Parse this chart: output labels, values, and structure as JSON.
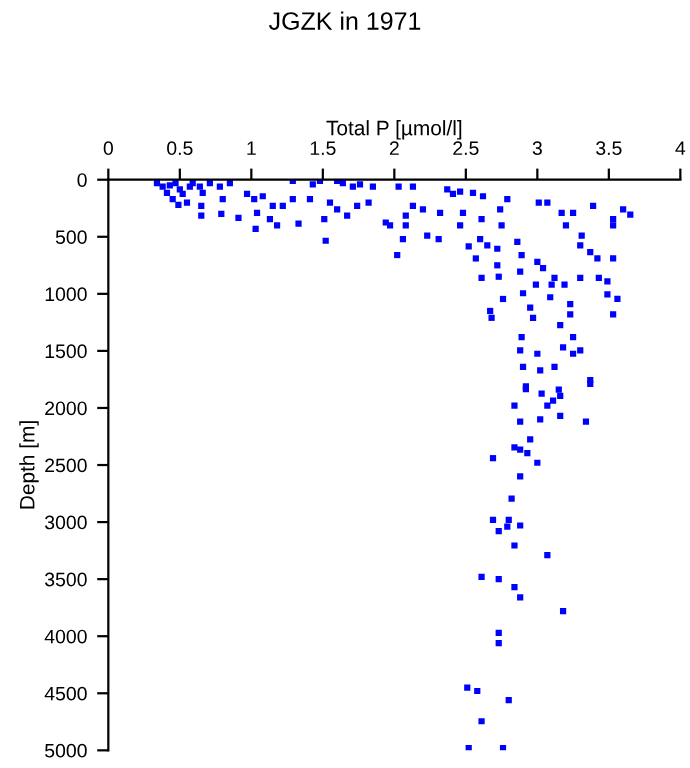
{
  "chart_data": {
    "type": "scatter",
    "title": "JGZK in 1971",
    "xlabel": "Total P [µmol/l]",
    "ylabel": "Depth [m]",
    "xlim": [
      0,
      4
    ],
    "xticks": [
      0,
      0.5,
      1,
      1.5,
      2,
      2.5,
      3,
      3.5,
      4
    ],
    "ylim": [
      5000,
      0
    ],
    "yticks": [
      0,
      500,
      1000,
      1500,
      2000,
      2500,
      3000,
      3500,
      4000,
      4500,
      5000
    ],
    "marker": "square",
    "grid": false,
    "legend": false,
    "series": [
      {
        "color": "#0000ff",
        "x": [
          0.34,
          0.38,
          0.43,
          0.47,
          0.5,
          0.52,
          0.41,
          0.45,
          0.55,
          0.49,
          0.57,
          0.59,
          0.64,
          0.66,
          0.65,
          0.65,
          0.71,
          0.78,
          0.8,
          0.79,
          0.85,
          0.91,
          0.97,
          1.02,
          1.04,
          1.03,
          1.08,
          1.15,
          1.18,
          1.13,
          1.22,
          1.29,
          1.29,
          1.33,
          1.41,
          1.43,
          1.48,
          1.51,
          1.52,
          1.55,
          1.6,
          1.6,
          1.64,
          1.67,
          1.71,
          1.76,
          1.74,
          1.82,
          1.85,
          1.94,
          1.97,
          2.02,
          2.03,
          2.08,
          2.08,
          2.06,
          2.13,
          2.13,
          2.2,
          2.23,
          2.31,
          2.32,
          2.37,
          2.41,
          2.46,
          2.46,
          2.48,
          2.55,
          2.52,
          2.57,
          2.6,
          2.62,
          2.61,
          2.61,
          2.65,
          2.67,
          2.68,
          2.72,
          2.73,
          2.72,
          2.75,
          2.74,
          2.76,
          2.79,
          2.86,
          2.88,
          2.89,
          2.89,
          2.88,
          2.9,
          2.9,
          2.92,
          2.95,
          2.97,
          2.99,
          3.02,
          3.01,
          3.07,
          3.0,
          3.0,
          3.04,
          3.09,
          3.1,
          3.12,
          3.12,
          3.15,
          3.16,
          3.17,
          3.18,
          3.19,
          3.23,
          3.2,
          3.23,
          3.25,
          3.25,
          3.25,
          3.3,
          3.3,
          3.3,
          3.31,
          3.37,
          3.37,
          3.39,
          3.42,
          3.43,
          3.49,
          3.49,
          3.53,
          3.53,
          3.53,
          3.56,
          3.53,
          3.6,
          3.65,
          2.92,
          3.03,
          3.16,
          3.11,
          3.07,
          2.84,
          3.16,
          3.02,
          2.88,
          3.37,
          3.34,
          2.95,
          2.84,
          2.88,
          2.93,
          3.0,
          2.69,
          2.88,
          2.82,
          2.69,
          2.8,
          2.79,
          2.73,
          2.88,
          2.84,
          3.07,
          2.61,
          2.73,
          2.84,
          2.88,
          3.18,
          2.73,
          2.73,
          2.51,
          2.58,
          2.8,
          2.61,
          2.52,
          2.76
        ],
        "values": [
          30,
          60,
          50,
          30,
          85,
          125,
          115,
          170,
          200,
          220,
          60,
          30,
          60,
          115,
          230,
          315,
          30,
          60,
          170,
          300,
          30,
          335,
          125,
          170,
          290,
          430,
          145,
          230,
          400,
          345,
          230,
          10,
          170,
          385,
          170,
          40,
          10,
          345,
          535,
          200,
          10,
          260,
          30,
          315,
          60,
          40,
          230,
          200,
          60,
          375,
          400,
          660,
          60,
          315,
          400,
          520,
          60,
          230,
          260,
          490,
          520,
          290,
          85,
          125,
          400,
          105,
          290,
          115,
          585,
          690,
          520,
          145,
          345,
          860,
          575,
          1150,
          1210,
          750,
          850,
          605,
          400,
          260,
          1045,
          170,
          545,
          805,
          660,
          1380,
          1495,
          995,
          1640,
          1810,
          1120,
          1210,
          920,
          1670,
          200,
          200,
          1525,
          720,
          775,
          1030,
          920,
          860,
          1640,
          1840,
          1275,
          290,
          1470,
          920,
          1090,
          400,
          1180,
          1380,
          1525,
          290,
          860,
          1495,
          575,
          490,
          635,
          1755,
          230,
          690,
          860,
          890,
          1005,
          345,
          400,
          690,
          1045,
          1180,
          260,
          305,
          1835,
          1875,
          1895,
          1935,
          1980,
          1980,
          2070,
          2100,
          2120,
          1790,
          2120,
          2275,
          2345,
          2365,
          2395,
          2480,
          2440,
          2600,
          2795,
          2980,
          2980,
          3040,
          3080,
          3030,
          3205,
          3290,
          3480,
          3500,
          3570,
          3660,
          3780,
          3970,
          4060,
          4450,
          4480,
          4560,
          4745,
          4980,
          4980
        ]
      }
    ]
  }
}
